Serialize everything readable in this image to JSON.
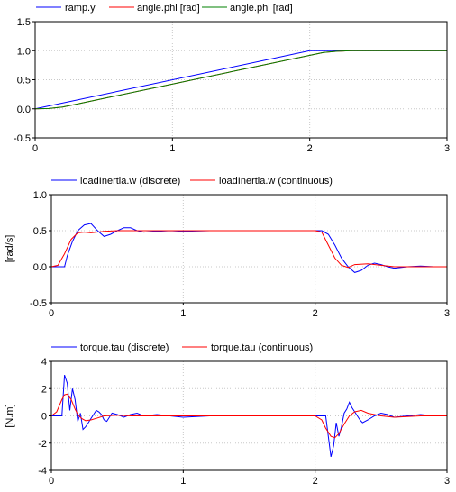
{
  "chart_data": [
    {
      "type": "line",
      "title": "",
      "xlabel": "",
      "ylabel": "",
      "xlim": [
        0,
        3
      ],
      "ylim": [
        -0.5,
        1.5
      ],
      "x_ticks": [
        "0",
        "1",
        "2",
        "3"
      ],
      "y_ticks": [
        "-0.5",
        "0.0",
        "0.5",
        "1.0",
        "1.5"
      ],
      "grid": true,
      "legend_position": "top-left",
      "series": [
        {
          "name": "ramp.y",
          "color": "#0000ff",
          "x": [
            0,
            2,
            2.1,
            3
          ],
          "y": [
            0,
            1,
            1,
            1
          ]
        },
        {
          "name": "angle.phi [rad]",
          "color": "#ff0000",
          "x": [
            0,
            0.1,
            0.2,
            0.3,
            2.1,
            2.2,
            2.3,
            3
          ],
          "y": [
            0,
            0.005,
            0.03,
            0.08,
            0.97,
            0.99,
            1.0,
            1.0
          ]
        },
        {
          "name": "angle.phi [rad]",
          "color": "#008000",
          "x": [
            0,
            0.1,
            0.2,
            0.3,
            2.1,
            2.2,
            2.3,
            3
          ],
          "y": [
            0,
            0.005,
            0.03,
            0.08,
            0.97,
            0.99,
            1.0,
            1.0
          ]
        }
      ]
    },
    {
      "type": "line",
      "title": "",
      "xlabel": "",
      "ylabel": "[rad/s]",
      "xlim": [
        0,
        3
      ],
      "ylim": [
        -0.5,
        1.0
      ],
      "x_ticks": [
        "0",
        "1",
        "2",
        "3"
      ],
      "y_ticks": [
        "-0.5",
        "0.0",
        "0.5",
        "1.0"
      ],
      "grid": true,
      "legend_position": "top-left",
      "series": [
        {
          "name": "loadInertia.w (discrete)",
          "color": "#0000ff",
          "x": [
            0,
            0.1,
            0.12,
            0.16,
            0.2,
            0.25,
            0.3,
            0.35,
            0.4,
            0.45,
            0.5,
            0.55,
            0.6,
            0.65,
            0.7,
            0.8,
            0.9,
            1.0,
            1.2,
            1.4,
            1.6,
            1.8,
            2.0,
            2.05,
            2.1,
            2.15,
            2.2,
            2.25,
            2.3,
            2.35,
            2.4,
            2.45,
            2.5,
            2.55,
            2.6,
            2.7,
            2.8,
            2.9,
            3.0
          ],
          "y": [
            0,
            0,
            0.15,
            0.35,
            0.5,
            0.58,
            0.6,
            0.5,
            0.42,
            0.45,
            0.5,
            0.54,
            0.54,
            0.5,
            0.48,
            0.49,
            0.5,
            0.49,
            0.5,
            0.5,
            0.5,
            0.5,
            0.5,
            0.5,
            0.45,
            0.3,
            0.12,
            0.0,
            -0.08,
            -0.05,
            0.02,
            0.05,
            0.03,
            0.0,
            -0.02,
            0.0,
            0.01,
            0.0,
            0.0
          ]
        },
        {
          "name": "loadInertia.w (continuous)",
          "color": "#ff0000",
          "x": [
            0,
            0.05,
            0.1,
            0.15,
            0.2,
            0.25,
            0.3,
            0.4,
            0.5,
            0.6,
            0.8,
            1.0,
            1.5,
            2.0,
            2.05,
            2.1,
            2.15,
            2.2,
            2.25,
            2.3,
            2.4,
            2.5,
            2.6,
            2.8,
            3.0
          ],
          "y": [
            0,
            0.02,
            0.18,
            0.38,
            0.47,
            0.48,
            0.47,
            0.49,
            0.5,
            0.5,
            0.5,
            0.5,
            0.5,
            0.5,
            0.48,
            0.3,
            0.12,
            0.02,
            -0.01,
            0.03,
            0.04,
            0.02,
            0.0,
            0.0,
            0.0
          ]
        }
      ]
    },
    {
      "type": "line",
      "title": "",
      "xlabel": "",
      "ylabel": "[N.m]",
      "xlim": [
        0,
        3
      ],
      "ylim": [
        -4,
        4
      ],
      "x_ticks": [
        "0",
        "1",
        "2",
        "3"
      ],
      "y_ticks": [
        "-4",
        "-2",
        "0",
        "2",
        "4"
      ],
      "grid": true,
      "legend_position": "top-left",
      "series": [
        {
          "name": "torque.tau (discrete)",
          "color": "#0000ff",
          "x": [
            0,
            0.08,
            0.1,
            0.12,
            0.14,
            0.16,
            0.18,
            0.2,
            0.22,
            0.24,
            0.26,
            0.28,
            0.3,
            0.32,
            0.34,
            0.36,
            0.38,
            0.4,
            0.42,
            0.44,
            0.46,
            0.5,
            0.55,
            0.6,
            0.65,
            0.7,
            0.8,
            0.9,
            1.0,
            1.2,
            1.4,
            1.6,
            1.8,
            2.0,
            2.06,
            2.08,
            2.1,
            2.12,
            2.14,
            2.16,
            2.18,
            2.2,
            2.22,
            2.24,
            2.26,
            2.28,
            2.3,
            2.32,
            2.34,
            2.36,
            2.4,
            2.45,
            2.5,
            2.55,
            2.6,
            2.7,
            2.8,
            2.9,
            3.0
          ],
          "y": [
            0,
            0,
            3.0,
            2.4,
            0.4,
            2.0,
            1.2,
            -0.4,
            0.2,
            -1.0,
            -0.8,
            -0.5,
            -0.2,
            0.1,
            0.4,
            0.3,
            0.1,
            -0.3,
            -0.4,
            -0.1,
            0.2,
            0.1,
            -0.1,
            0.1,
            0.2,
            0.0,
            0.1,
            0.0,
            -0.1,
            0.0,
            0.0,
            0.0,
            0.0,
            0.0,
            0.0,
            0.0,
            -1.5,
            -3.0,
            -2.2,
            -0.5,
            -1.5,
            -0.8,
            0.2,
            0.5,
            1.0,
            0.6,
            0.3,
            0.0,
            -0.3,
            -0.5,
            -0.3,
            0.0,
            0.2,
            0.1,
            -0.1,
            0.0,
            0.1,
            0.0,
            0.0
          ]
        },
        {
          "name": "torque.tau (continuous)",
          "color": "#ff0000",
          "x": [
            0,
            0.04,
            0.08,
            0.1,
            0.12,
            0.15,
            0.18,
            0.2,
            0.23,
            0.26,
            0.3,
            0.35,
            0.4,
            0.5,
            0.6,
            0.8,
            1.0,
            1.5,
            2.0,
            2.05,
            2.08,
            2.12,
            2.15,
            2.18,
            2.22,
            2.26,
            2.3,
            2.35,
            2.4,
            2.5,
            2.6,
            2.8,
            3.0
          ],
          "y": [
            0,
            0.3,
            1.2,
            1.55,
            1.6,
            1.2,
            0.5,
            0.1,
            -0.2,
            -0.35,
            -0.3,
            -0.15,
            0.0,
            0.05,
            0.0,
            0.0,
            0.0,
            0.0,
            0.0,
            -0.3,
            -0.9,
            -1.5,
            -1.6,
            -1.3,
            -0.6,
            0.0,
            0.3,
            0.4,
            0.2,
            0.0,
            -0.1,
            0.0,
            0.0
          ]
        }
      ]
    }
  ]
}
